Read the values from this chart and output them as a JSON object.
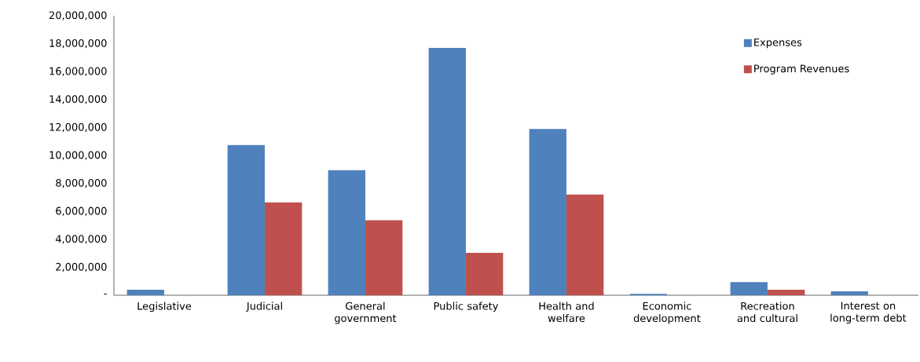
{
  "chart_data": {
    "type": "bar",
    "categories": [
      "Legislative",
      "Judicial",
      "General government",
      "Public safety",
      "Health and welfare",
      "Economic development",
      "Recreation and cultural",
      "Interest on long-term debt"
    ],
    "series": [
      {
        "name": "Expenses",
        "color": "#4f81bd",
        "values": [
          400000,
          10750000,
          8950000,
          17700000,
          11900000,
          100000,
          940000,
          280000
        ]
      },
      {
        "name": "Program Revenues",
        "color": "#c0504d",
        "values": [
          0,
          6650000,
          5370000,
          3040000,
          7210000,
          0,
          400000,
          0
        ]
      }
    ],
    "ylim": [
      0,
      20000000
    ],
    "yticks": [
      {
        "value": 0,
        "label": "-"
      },
      {
        "value": 2000000,
        "label": "2,000,000"
      },
      {
        "value": 4000000,
        "label": "4,000,000"
      },
      {
        "value": 6000000,
        "label": "6,000,000"
      },
      {
        "value": 8000000,
        "label": "8,000,000"
      },
      {
        "value": 10000000,
        "label": "10,000,000"
      },
      {
        "value": 12000000,
        "label": "12,000,000"
      },
      {
        "value": 14000000,
        "label": "14,000,000"
      },
      {
        "value": 16000000,
        "label": "16,000,000"
      },
      {
        "value": 18000000,
        "label": "18,000,000"
      },
      {
        "value": 20000000,
        "label": "20,000,000"
      }
    ],
    "legend": "top right",
    "grid": false
  }
}
